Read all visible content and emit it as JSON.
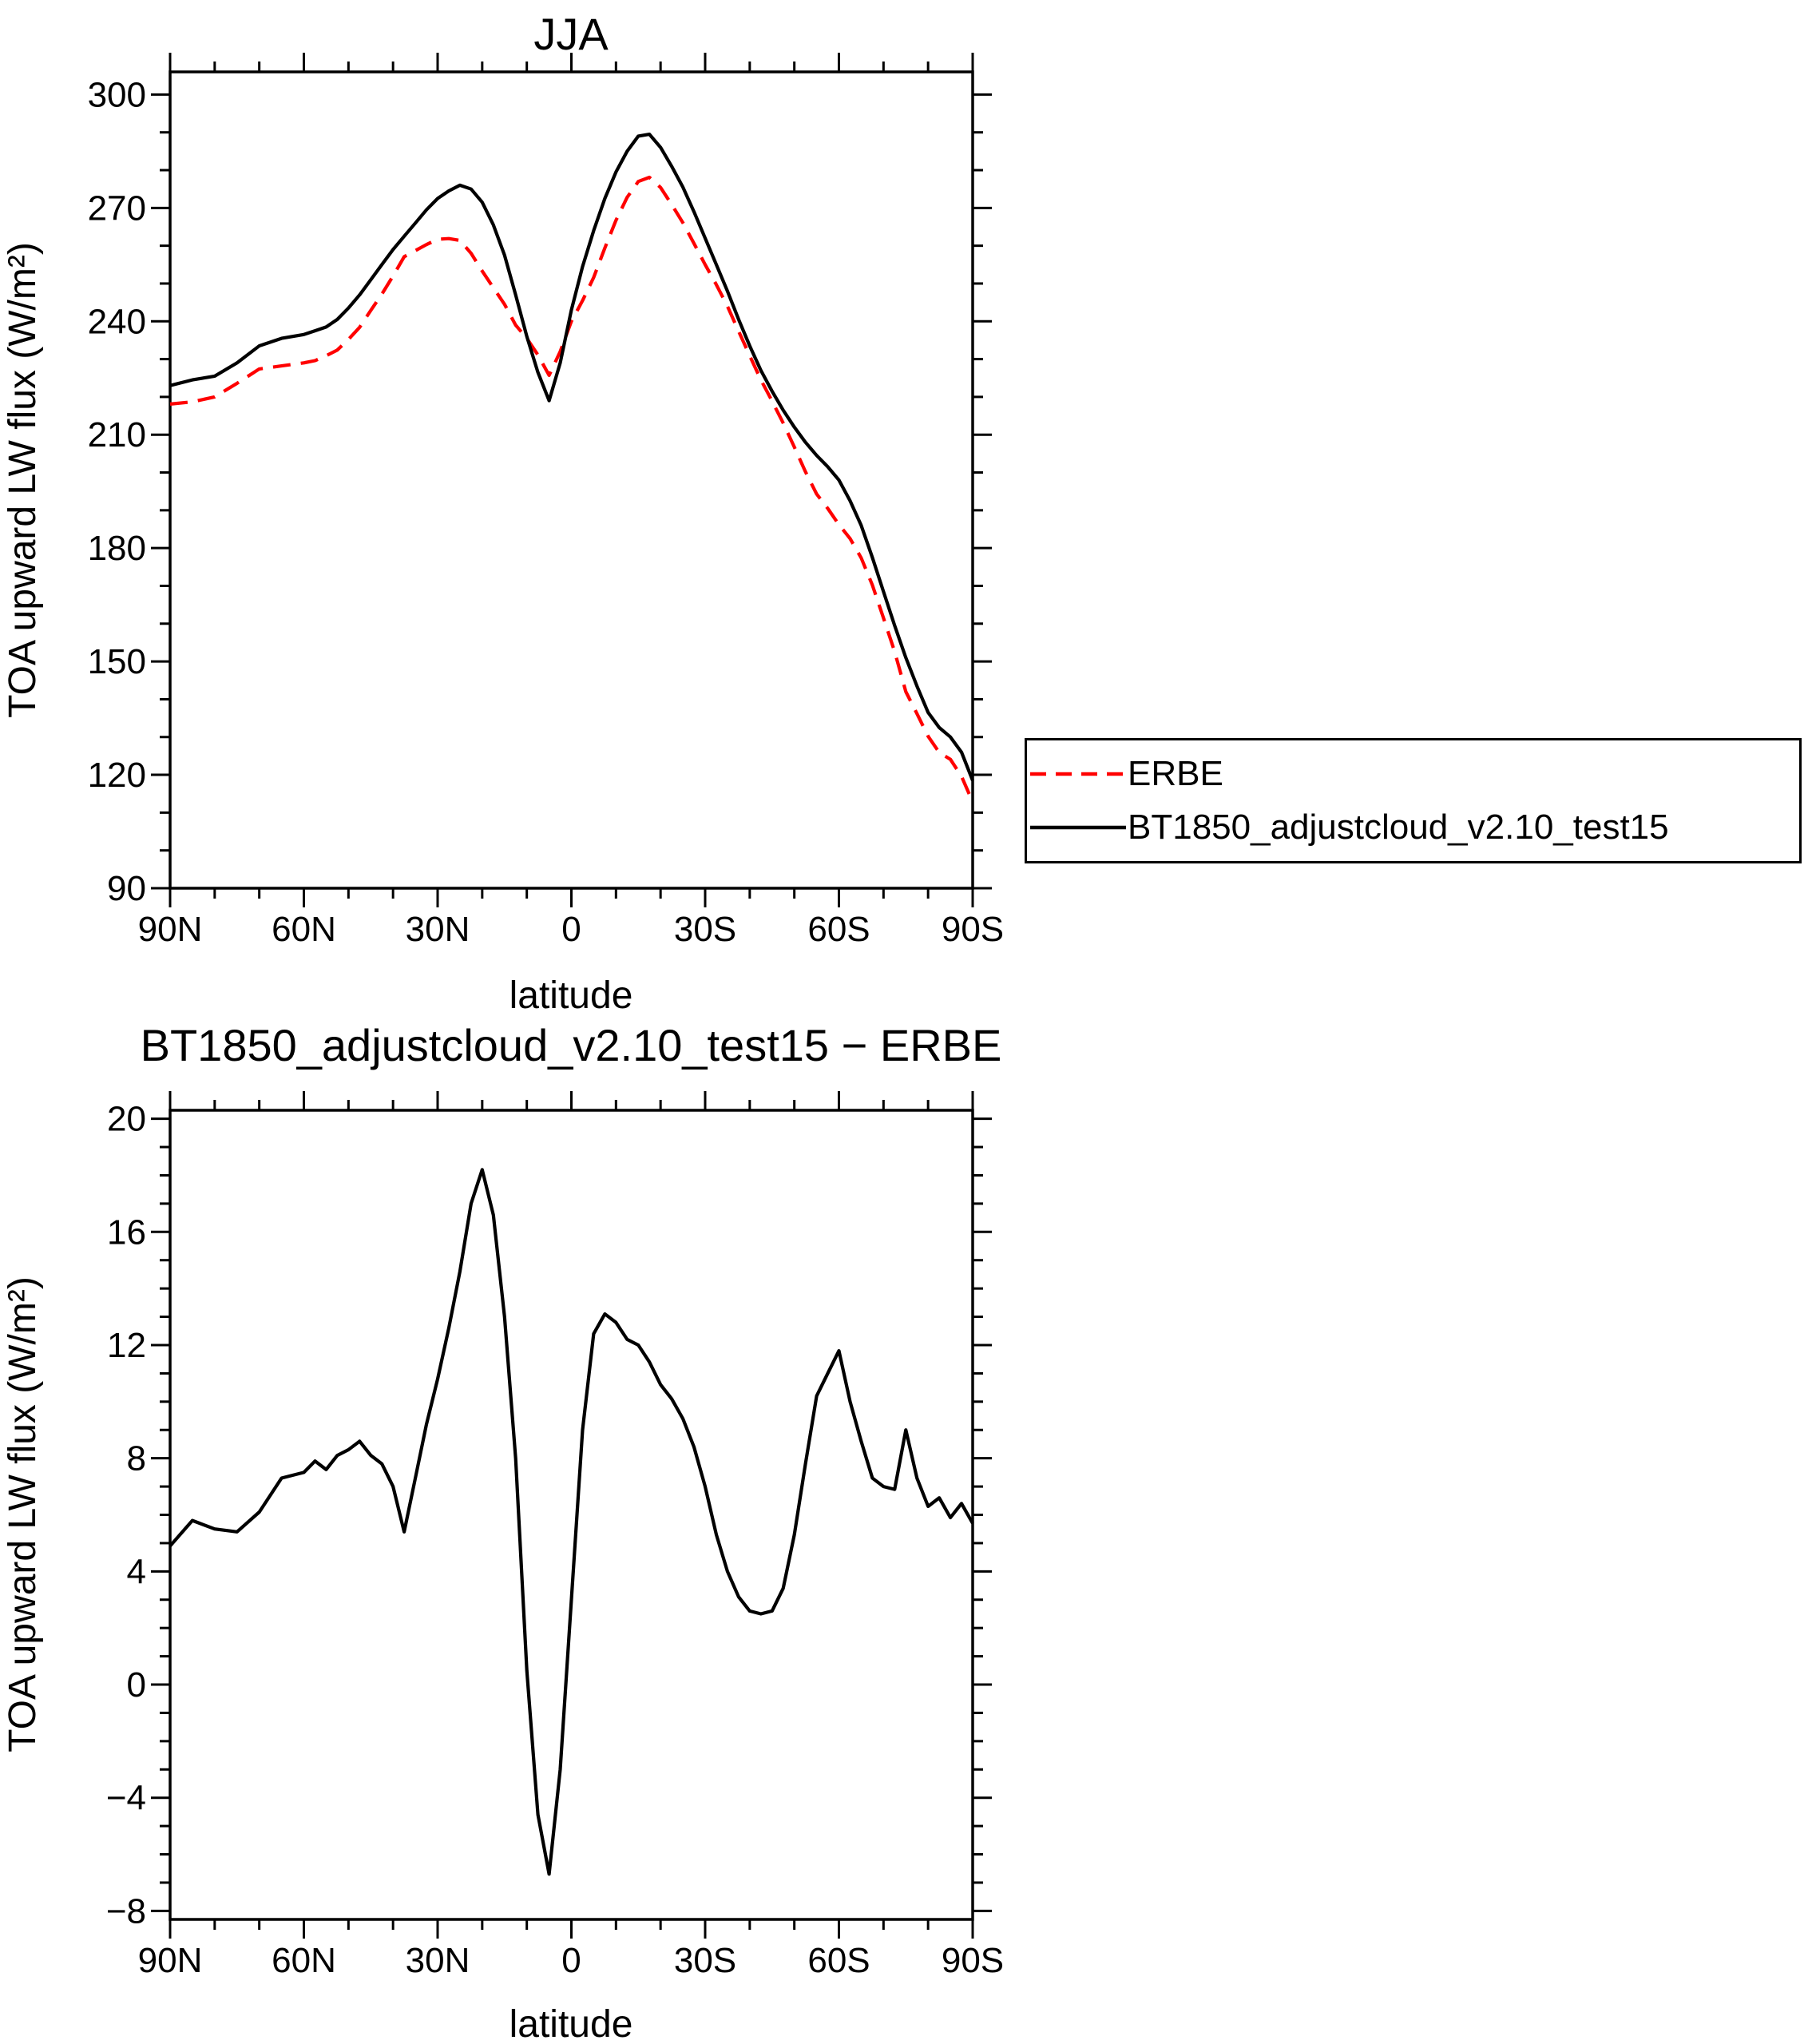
{
  "colors": {
    "axis": "#000000",
    "background": "#ffffff",
    "erbe": "#ff0000",
    "model": "#000000"
  },
  "chart_data": [
    {
      "type": "line",
      "title": "JJA",
      "xlabel": "latitude",
      "ylabel": "TOA upward LW flux (W/m²)",
      "xlim": [
        90,
        -90
      ],
      "ylim": [
        90,
        306
      ],
      "xticks": [
        90,
        60,
        30,
        0,
        -30,
        -60,
        -90
      ],
      "xticklabels": [
        "90N",
        "60N",
        "30N",
        "0",
        "30S",
        "60S",
        "90S"
      ],
      "x_minor_step": 10,
      "yticks": [
        90,
        120,
        150,
        180,
        210,
        240,
        270,
        300
      ],
      "y_minor_step": 10,
      "grid": false,
      "legend_position": "outside-right",
      "x": [
        90,
        85,
        80,
        75,
        70,
        65,
        60,
        57.5,
        55,
        52.5,
        50,
        47.5,
        45,
        42.5,
        40,
        37.5,
        35,
        32.5,
        30,
        27.5,
        25,
        22.5,
        20,
        17.5,
        15,
        12.5,
        10,
        7.5,
        5,
        2.5,
        0,
        -2.5,
        -5,
        -7.5,
        -10,
        -12.5,
        -15,
        -17.5,
        -20,
        -22.5,
        -25,
        -27.5,
        -30,
        -32.5,
        -35,
        -37.5,
        -40,
        -42.5,
        -45,
        -47.5,
        -50,
        -52.5,
        -55,
        -57.5,
        -60,
        -62.5,
        -65,
        -67.5,
        -70,
        -72.5,
        -75,
        -77.5,
        -80,
        -82.5,
        -85,
        -87.5,
        -90
      ],
      "series": [
        {
          "name": "ERBE",
          "color": "#ff0000",
          "style": "dashed",
          "values": [
            218.1,
            218.7,
            220.0,
            223.6,
            227.4,
            228.2,
            229.0,
            229.6,
            230.9,
            232.4,
            235.2,
            238.4,
            242.9,
            247.2,
            252.0,
            257.1,
            258.7,
            260.3,
            261.7,
            261.9,
            261.4,
            258.0,
            253.3,
            248.9,
            244.5,
            239.0,
            235.5,
            231.1,
            225.7,
            232.0,
            240.0,
            245.5,
            251.6,
            259.4,
            266.7,
            272.8,
            277.0,
            278.1,
            275.4,
            270.9,
            266.1,
            260.6,
            255.0,
            249.7,
            244.0,
            237.4,
            230.9,
            224.5,
            218.9,
            213.1,
            206.7,
            200.2,
            194.3,
            190.5,
            186.2,
            182.5,
            177.4,
            170.2,
            161.5,
            152.6,
            142.0,
            136.2,
            130.2,
            125.9,
            124.1,
            119.6,
            112.8
          ]
        },
        {
          "name": "BT1850_adjustcloud_v2.10_test15",
          "color": "#000000",
          "style": "solid",
          "values": [
            223,
            224.5,
            225.5,
            229,
            233.5,
            235.5,
            236.5,
            237.5,
            238.5,
            240.5,
            243.5,
            247,
            251,
            255,
            259,
            262.5,
            266,
            269.5,
            272.5,
            274.5,
            276,
            275,
            271.5,
            265.5,
            257.5,
            247,
            236,
            226.5,
            219,
            229,
            243,
            254.5,
            264,
            272.5,
            279.5,
            285,
            289,
            289.5,
            286,
            281,
            275.5,
            269,
            262,
            255,
            248,
            240.5,
            233.5,
            227,
            221.5,
            216.5,
            212,
            208,
            204.5,
            201.5,
            198,
            192.5,
            186,
            177.5,
            168.5,
            159.5,
            151,
            143.5,
            136.5,
            132.5,
            130,
            126,
            118.5
          ]
        }
      ]
    },
    {
      "type": "line",
      "title": "BT1850_adjustcloud_v2.10_test15 − ERBE",
      "xlabel": "latitude",
      "ylabel": "TOA upward LW flux (W/m²)",
      "xlim": [
        90,
        -90
      ],
      "ylim": [
        -8.3,
        20.3
      ],
      "xticks": [
        90,
        60,
        30,
        0,
        -30,
        -60,
        -90
      ],
      "xticklabels": [
        "90N",
        "60N",
        "30N",
        "0",
        "30S",
        "60S",
        "90S"
      ],
      "x_minor_step": 10,
      "yticks": [
        -8,
        -4,
        0,
        4,
        8,
        12,
        16,
        20
      ],
      "y_minor_step": 1,
      "grid": false,
      "x": [
        90,
        85,
        80,
        75,
        70,
        65,
        60,
        57.5,
        55,
        52.5,
        50,
        47.5,
        45,
        42.5,
        40,
        37.5,
        35,
        32.5,
        30,
        27.5,
        25,
        22.5,
        20,
        17.5,
        15,
        12.5,
        10,
        7.5,
        5,
        2.5,
        0,
        -2.5,
        -5,
        -7.5,
        -10,
        -12.5,
        -15,
        -17.5,
        -20,
        -22.5,
        -25,
        -27.5,
        -30,
        -32.5,
        -35,
        -37.5,
        -40,
        -42.5,
        -45,
        -47.5,
        -50,
        -52.5,
        -55,
        -57.5,
        -60,
        -62.5,
        -65,
        -67.5,
        -70,
        -72.5,
        -75,
        -77.5,
        -80,
        -82.5,
        -85,
        -87.5,
        -90
      ],
      "series": [
        {
          "name": "BT1850_adjustcloud_v2.10_test15 − ERBE",
          "color": "#000000",
          "style": "solid",
          "values": [
            4.9,
            5.8,
            5.5,
            5.4,
            6.1,
            7.3,
            7.5,
            7.9,
            7.6,
            8.1,
            8.3,
            8.6,
            8.1,
            7.8,
            7.0,
            5.4,
            7.3,
            9.2,
            10.8,
            12.6,
            14.6,
            17.0,
            18.2,
            16.6,
            13.0,
            8.0,
            0.5,
            -4.6,
            -6.7,
            -3.0,
            3.0,
            9.0,
            12.4,
            13.1,
            12.8,
            12.2,
            12.0,
            11.4,
            10.6,
            10.1,
            9.4,
            8.4,
            7.0,
            5.3,
            4.0,
            3.1,
            2.6,
            2.5,
            2.6,
            3.4,
            5.3,
            7.8,
            10.2,
            11.0,
            11.8,
            10.0,
            8.6,
            7.3,
            7.0,
            6.9,
            9.0,
            7.3,
            6.3,
            6.6,
            5.9,
            6.4,
            5.7
          ]
        }
      ]
    }
  ],
  "legend": {
    "entries": [
      "ERBE",
      "BT1850_adjustcloud_v2.10_test15"
    ]
  }
}
